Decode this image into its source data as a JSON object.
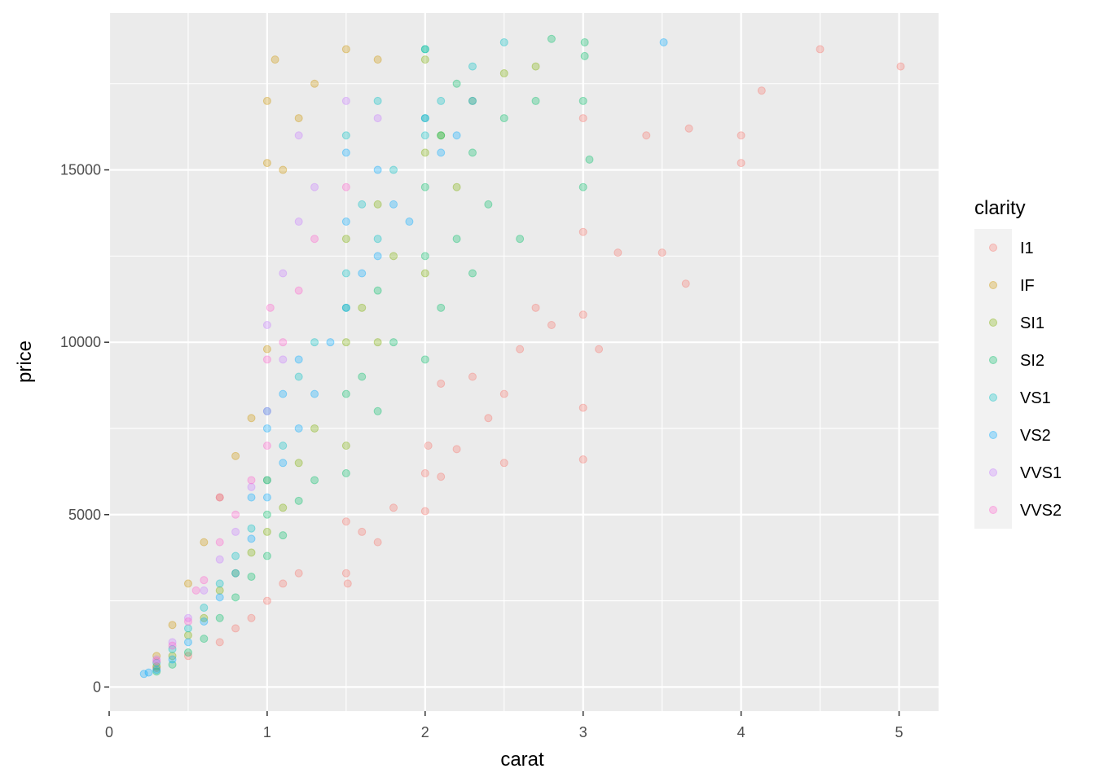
{
  "chart_data": {
    "type": "scatter",
    "title": "",
    "xlabel": "carat",
    "ylabel": "price",
    "xlim": [
      0,
      5.25
    ],
    "ylim": [
      -700,
      19550
    ],
    "x_ticks": [
      {
        "value": 0,
        "label": "0"
      },
      {
        "value": 1,
        "label": "1"
      },
      {
        "value": 2,
        "label": "2"
      },
      {
        "value": 3,
        "label": "3"
      },
      {
        "value": 4,
        "label": "4"
      },
      {
        "value": 5,
        "label": "5"
      }
    ],
    "y_ticks": [
      {
        "value": 0,
        "label": "0"
      },
      {
        "value": 5000,
        "label": "5000"
      },
      {
        "value": 10000,
        "label": "10000"
      },
      {
        "value": 15000,
        "label": "15000"
      }
    ],
    "panel_background": "#ebebeb",
    "grid": true,
    "grid_color": "#ffffff",
    "point_alpha": 0.15,
    "legend": {
      "title": "clarity",
      "position": "right",
      "background": "#f2f2f2",
      "entries": [
        {
          "label": "I1",
          "color": "#F8766D"
        },
        {
          "label": "IF",
          "color": "#CD9600"
        },
        {
          "label": "SI1",
          "color": "#7CAE00"
        },
        {
          "label": "SI2",
          "color": "#00BE67"
        },
        {
          "label": "VS1",
          "color": "#00BFC4"
        },
        {
          "label": "VS2",
          "color": "#00A9FF"
        },
        {
          "label": "VVS1",
          "color": "#C77CFF"
        },
        {
          "label": "VVS2",
          "color": "#FF61CC"
        }
      ]
    },
    "series": [
      {
        "name": "I1",
        "color": "#F8766D",
        "points": [
          [
            0.3,
            550
          ],
          [
            0.5,
            900
          ],
          [
            0.7,
            1300
          ],
          [
            0.8,
            1700
          ],
          [
            0.9,
            2000
          ],
          [
            1.0,
            2500
          ],
          [
            1.1,
            3000
          ],
          [
            1.2,
            3300
          ],
          [
            1.5,
            3300
          ],
          [
            1.5,
            4800
          ],
          [
            1.51,
            3000
          ],
          [
            1.6,
            4500
          ],
          [
            1.7,
            4200
          ],
          [
            1.8,
            5200
          ],
          [
            2.0,
            5100
          ],
          [
            2.0,
            6200
          ],
          [
            2.02,
            7000
          ],
          [
            2.1,
            6100
          ],
          [
            2.1,
            8800
          ],
          [
            2.2,
            6900
          ],
          [
            2.3,
            9000
          ],
          [
            2.4,
            7800
          ],
          [
            2.5,
            6500
          ],
          [
            2.5,
            8500
          ],
          [
            2.6,
            9800
          ],
          [
            2.7,
            11000
          ],
          [
            2.8,
            10500
          ],
          [
            3.0,
            6600
          ],
          [
            3.0,
            8100
          ],
          [
            3.0,
            10800
          ],
          [
            3.0,
            13200
          ],
          [
            3.0,
            16500
          ],
          [
            3.1,
            9800
          ],
          [
            3.22,
            12600
          ],
          [
            3.4,
            16000
          ],
          [
            3.5,
            12600
          ],
          [
            3.65,
            11700
          ],
          [
            3.67,
            16200
          ],
          [
            4.0,
            15200
          ],
          [
            4.0,
            16000
          ],
          [
            4.13,
            17300
          ],
          [
            4.5,
            18500
          ],
          [
            5.01,
            18000
          ]
        ]
      },
      {
        "name": "IF",
        "color": "#CD9600",
        "points": [
          [
            0.3,
            900
          ],
          [
            0.4,
            1800
          ],
          [
            0.5,
            3000
          ],
          [
            0.6,
            4200
          ],
          [
            0.7,
            5500
          ],
          [
            0.8,
            6700
          ],
          [
            0.9,
            7800
          ],
          [
            1.0,
            9800
          ],
          [
            1.0,
            15200
          ],
          [
            1.0,
            17000
          ],
          [
            1.05,
            18200
          ],
          [
            1.1,
            15000
          ],
          [
            1.2,
            16500
          ],
          [
            1.3,
            17500
          ],
          [
            1.5,
            18500
          ],
          [
            1.7,
            18200
          ]
        ]
      },
      {
        "name": "SI1",
        "color": "#7CAE00",
        "points": [
          [
            0.3,
            600
          ],
          [
            0.4,
            900
          ],
          [
            0.5,
            1500
          ],
          [
            0.6,
            2000
          ],
          [
            0.7,
            2800
          ],
          [
            0.8,
            3300
          ],
          [
            0.9,
            3900
          ],
          [
            1.0,
            4500
          ],
          [
            1.0,
            6000
          ],
          [
            1.1,
            5200
          ],
          [
            1.2,
            6500
          ],
          [
            1.3,
            7500
          ],
          [
            1.5,
            7000
          ],
          [
            1.5,
            10000
          ],
          [
            1.5,
            13000
          ],
          [
            1.6,
            11000
          ],
          [
            1.7,
            10000
          ],
          [
            1.7,
            14000
          ],
          [
            1.8,
            12500
          ],
          [
            2.0,
            12000
          ],
          [
            2.0,
            15500
          ],
          [
            2.0,
            18200
          ],
          [
            2.1,
            16000
          ],
          [
            2.2,
            14500
          ],
          [
            2.3,
            17000
          ],
          [
            2.5,
            17800
          ],
          [
            2.7,
            18000
          ]
        ]
      },
      {
        "name": "SI2",
        "color": "#00BE67",
        "points": [
          [
            0.3,
            450
          ],
          [
            0.4,
            650
          ],
          [
            0.5,
            1000
          ],
          [
            0.6,
            1400
          ],
          [
            0.7,
            2000
          ],
          [
            0.8,
            2600
          ],
          [
            0.9,
            3200
          ],
          [
            1.0,
            3800
          ],
          [
            1.0,
            5000
          ],
          [
            1.1,
            4400
          ],
          [
            1.2,
            5400
          ],
          [
            1.3,
            6000
          ],
          [
            1.5,
            6200
          ],
          [
            1.5,
            8500
          ],
          [
            1.5,
            11000
          ],
          [
            1.6,
            9000
          ],
          [
            1.7,
            8000
          ],
          [
            1.7,
            11500
          ],
          [
            1.8,
            10000
          ],
          [
            2.0,
            9500
          ],
          [
            2.0,
            12500
          ],
          [
            2.0,
            14500
          ],
          [
            2.0,
            16500
          ],
          [
            2.0,
            18500
          ],
          [
            2.1,
            11000
          ],
          [
            2.1,
            16000
          ],
          [
            2.2,
            13000
          ],
          [
            2.2,
            17500
          ],
          [
            2.3,
            12000
          ],
          [
            2.3,
            15500
          ],
          [
            2.4,
            14000
          ],
          [
            2.5,
            16500
          ],
          [
            2.6,
            13000
          ],
          [
            2.7,
            17000
          ],
          [
            2.8,
            18800
          ],
          [
            3.0,
            14500
          ],
          [
            3.0,
            17000
          ],
          [
            3.01,
            18300
          ],
          [
            3.01,
            18700
          ],
          [
            3.04,
            15300
          ]
        ]
      },
      {
        "name": "VS1",
        "color": "#00BFC4",
        "points": [
          [
            0.3,
            700
          ],
          [
            0.4,
            1100
          ],
          [
            0.5,
            1700
          ],
          [
            0.6,
            2300
          ],
          [
            0.7,
            3000
          ],
          [
            0.8,
            3800
          ],
          [
            0.9,
            4600
          ],
          [
            1.0,
            6000
          ],
          [
            1.0,
            8000
          ],
          [
            1.1,
            7000
          ],
          [
            1.2,
            9000
          ],
          [
            1.3,
            10000
          ],
          [
            1.5,
            12000
          ],
          [
            1.5,
            16000
          ],
          [
            1.6,
            14000
          ],
          [
            1.7,
            13000
          ],
          [
            1.7,
            17000
          ],
          [
            1.8,
            15000
          ],
          [
            2.0,
            16000
          ],
          [
            2.0,
            18500
          ],
          [
            2.1,
            17000
          ],
          [
            2.3,
            18000
          ],
          [
            2.5,
            18700
          ]
        ]
      },
      {
        "name": "VS2",
        "color": "#00A9FF",
        "points": [
          [
            0.22,
            380
          ],
          [
            0.25,
            420
          ],
          [
            0.3,
            500
          ],
          [
            0.4,
            800
          ],
          [
            0.5,
            1300
          ],
          [
            0.6,
            1900
          ],
          [
            0.7,
            2600
          ],
          [
            0.8,
            3300
          ],
          [
            0.9,
            4300
          ],
          [
            0.9,
            5500
          ],
          [
            1.0,
            5500
          ],
          [
            1.0,
            7500
          ],
          [
            1.1,
            6500
          ],
          [
            1.1,
            8500
          ],
          [
            1.2,
            7500
          ],
          [
            1.2,
            9500
          ],
          [
            1.3,
            8500
          ],
          [
            1.4,
            10000
          ],
          [
            1.5,
            11000
          ],
          [
            1.5,
            13500
          ],
          [
            1.5,
            15500
          ],
          [
            1.6,
            12000
          ],
          [
            1.7,
            12500
          ],
          [
            1.7,
            15000
          ],
          [
            1.8,
            14000
          ],
          [
            1.9,
            13500
          ],
          [
            2.0,
            16500
          ],
          [
            2.1,
            15500
          ],
          [
            2.2,
            16000
          ],
          [
            2.3,
            17000
          ],
          [
            3.51,
            18700
          ]
        ]
      },
      {
        "name": "VVS1",
        "color": "#C77CFF",
        "points": [
          [
            0.3,
            800
          ],
          [
            0.4,
            1300
          ],
          [
            0.5,
            2000
          ],
          [
            0.6,
            2800
          ],
          [
            0.7,
            3700
          ],
          [
            0.8,
            4500
          ],
          [
            0.9,
            5800
          ],
          [
            1.0,
            8000
          ],
          [
            1.0,
            10500
          ],
          [
            1.1,
            9500
          ],
          [
            1.1,
            12000
          ],
          [
            1.2,
            13500
          ],
          [
            1.2,
            16000
          ],
          [
            1.3,
            14500
          ],
          [
            1.5,
            17000
          ],
          [
            1.7,
            16500
          ]
        ]
      },
      {
        "name": "VVS2",
        "color": "#FF61CC",
        "points": [
          [
            0.3,
            750
          ],
          [
            0.4,
            1200
          ],
          [
            0.5,
            1900
          ],
          [
            0.55,
            2800
          ],
          [
            0.6,
            3100
          ],
          [
            0.7,
            4200
          ],
          [
            0.7,
            5500
          ],
          [
            0.8,
            5000
          ],
          [
            0.9,
            6000
          ],
          [
            1.0,
            7000
          ],
          [
            1.0,
            9500
          ],
          [
            1.02,
            11000
          ],
          [
            1.1,
            10000
          ],
          [
            1.2,
            11500
          ],
          [
            1.3,
            13000
          ],
          [
            1.5,
            14500
          ]
        ]
      }
    ]
  }
}
